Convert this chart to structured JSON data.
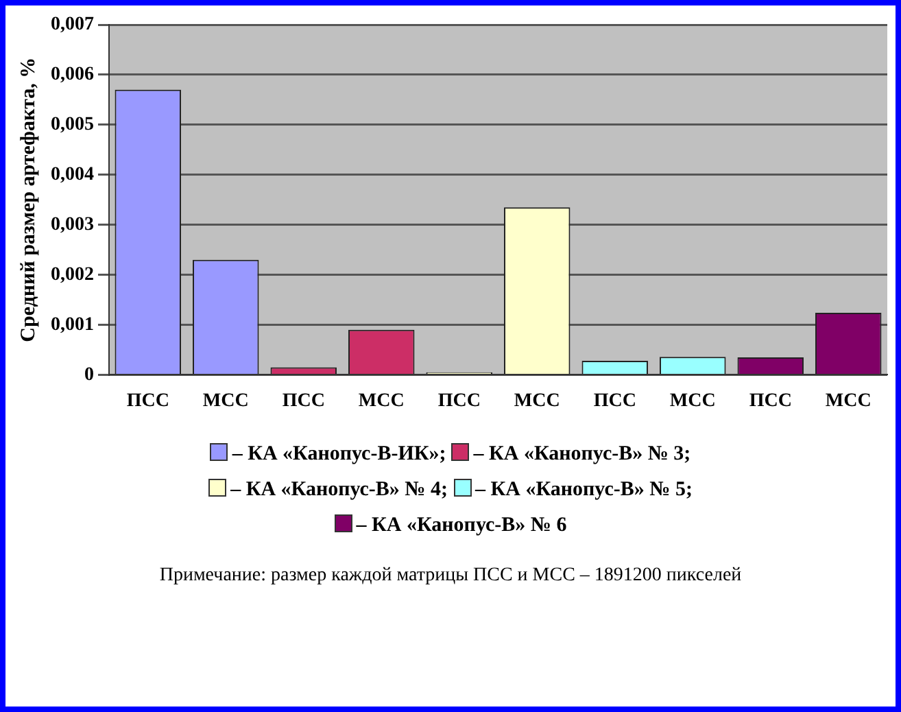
{
  "chart_data": {
    "type": "bar",
    "ylabel": "Средний размер артефакта, %",
    "categories": [
      "ПСС",
      "МСС",
      "ПСС",
      "МСС",
      "ПСС",
      "МСС",
      "ПСС",
      "МСС",
      "ПСС",
      "МСС"
    ],
    "series": [
      {
        "name": "– КА «Канопус-В-ИК»;",
        "color": "#9999ff",
        "values": [
          0.0057,
          0.0023,
          null,
          null,
          null,
          null,
          null,
          null,
          null,
          null
        ]
      },
      {
        "name": "– КА «Канопус-В» № 3;",
        "color": "#cc2e66",
        "values": [
          null,
          null,
          0.00015,
          0.0009,
          null,
          null,
          null,
          null,
          null,
          null
        ]
      },
      {
        "name": "– КА «Канопус-В» № 4;",
        "color": "#ffffcc",
        "values": [
          null,
          null,
          null,
          null,
          5e-05,
          0.00335,
          null,
          null,
          null,
          null
        ]
      },
      {
        "name": "– КА «Канопус-В» № 5;",
        "color": "#99ffff",
        "values": [
          null,
          null,
          null,
          null,
          null,
          null,
          0.00028,
          0.00036,
          null,
          null
        ]
      },
      {
        "name": "– КА «Канопус-В» № 6",
        "color": "#800066",
        "values": [
          null,
          null,
          null,
          null,
          null,
          null,
          null,
          null,
          0.00035,
          0.00124
        ]
      }
    ],
    "ylim": [
      0,
      0.007
    ],
    "yticks": [
      {
        "value": 0,
        "label": "0"
      },
      {
        "value": 0.001,
        "label": "0,001"
      },
      {
        "value": 0.002,
        "label": "0,002"
      },
      {
        "value": 0.003,
        "label": "0,003"
      },
      {
        "value": 0.004,
        "label": "0,004"
      },
      {
        "value": 0.005,
        "label": "0,005"
      },
      {
        "value": 0.006,
        "label": "0,006"
      },
      {
        "value": 0.007,
        "label": "0,007"
      }
    ],
    "grid": "y",
    "legend": "bottom",
    "annotations": [
      "Примечание: размер каждой матрицы ПСС и МСС – 1891200 пикселей"
    ]
  }
}
